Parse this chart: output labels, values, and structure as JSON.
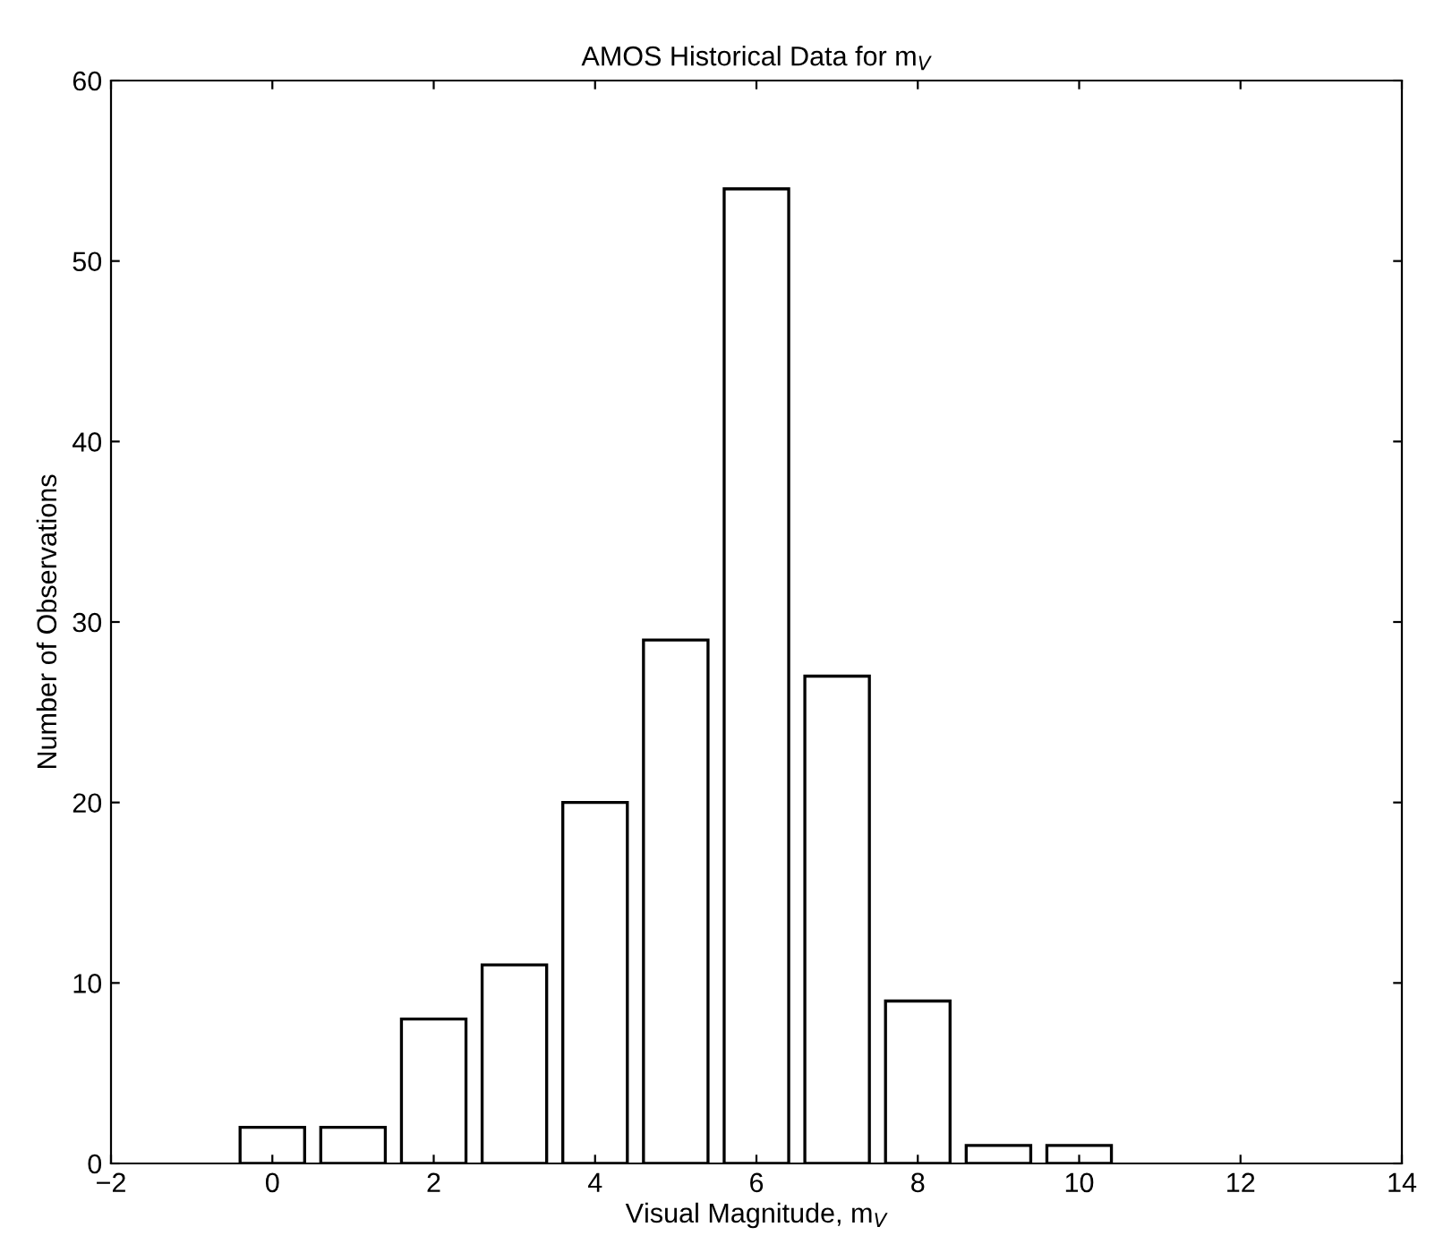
{
  "chart_data": {
    "type": "bar",
    "title": "AMOS Historical Data for m$_{V}$",
    "xlabel": "Visual Magnitude, m$_{V}$",
    "ylabel": "Number of Observations",
    "x": [
      0,
      1,
      2,
      3,
      4,
      5,
      6,
      7,
      8,
      9,
      10
    ],
    "values": [
      2,
      2,
      8,
      11,
      20,
      29,
      54,
      27,
      9,
      1,
      1
    ],
    "color": "#ffffff",
    "xlim": [
      -2,
      14
    ],
    "xticks": [
      {
        "value": -2,
        "label": "−2"
      },
      0,
      2,
      4,
      6,
      8,
      10,
      12,
      14
    ],
    "ylim": [
      0,
      60
    ],
    "yticks": [
      0,
      10,
      20,
      30,
      40,
      50,
      60
    ],
    "grid": false
  }
}
